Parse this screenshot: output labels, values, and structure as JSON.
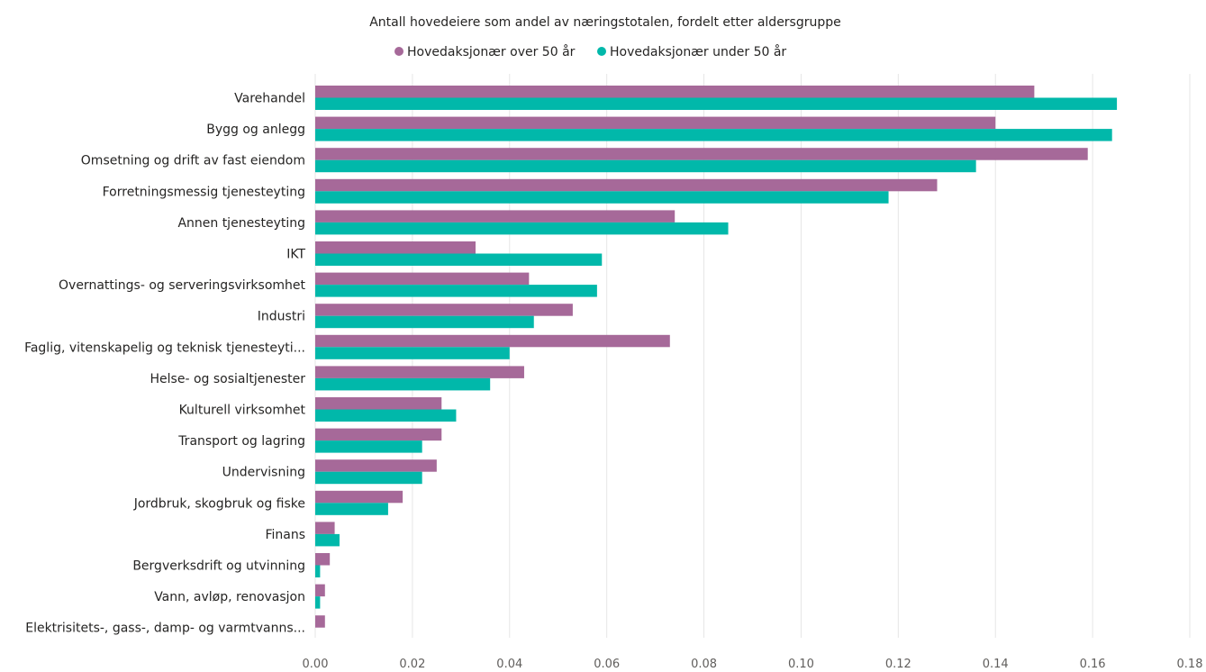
{
  "chart_data": {
    "type": "bar",
    "orientation": "horizontal",
    "title": "Antall hovedeiere som andel av næringstotalen, fordelt etter aldersgruppe",
    "categories": [
      "Varehandel",
      "Bygg og anlegg",
      "Omsetning og drift av fast eiendom",
      "Forretningsmessig tjenesteyting",
      "Annen tjenesteyting",
      "IKT",
      "Overnattings- og serveringsvirksomhet",
      "Industri",
      "Faglig, vitenskapelig og teknisk tjenesteyti...",
      "Helse- og sosialtjenester",
      "Kulturell virksomhet",
      "Transport og lagring",
      "Undervisning",
      "Jordbruk, skogbruk og fiske",
      "Finans",
      "Bergverksdrift og utvinning",
      "Vann, avløp, renovasjon",
      "Elektrisitets-, gass-, damp- og varmtvanns..."
    ],
    "series": [
      {
        "name": "Hovedaksjonær over 50 år",
        "color": "#A66999",
        "values": [
          0.148,
          0.14,
          0.159,
          0.128,
          0.074,
          0.033,
          0.044,
          0.053,
          0.073,
          0.043,
          0.026,
          0.026,
          0.025,
          0.018,
          0.004,
          0.003,
          0.002,
          0.002
        ]
      },
      {
        "name": "Hovedaksjonær under 50 år",
        "color": "#01B8AA",
        "values": [
          0.165,
          0.164,
          0.136,
          0.118,
          0.085,
          0.059,
          0.058,
          0.045,
          0.04,
          0.036,
          0.029,
          0.022,
          0.022,
          0.015,
          0.005,
          0.001,
          0.001,
          0
        ]
      }
    ],
    "xlim": [
      0,
      0.18
    ],
    "xticks": [
      "0.00",
      "0.02",
      "0.04",
      "0.06",
      "0.08",
      "0.10",
      "0.12",
      "0.14",
      "0.16",
      "0.18"
    ],
    "grid": true,
    "legend_position": "top-center"
  }
}
